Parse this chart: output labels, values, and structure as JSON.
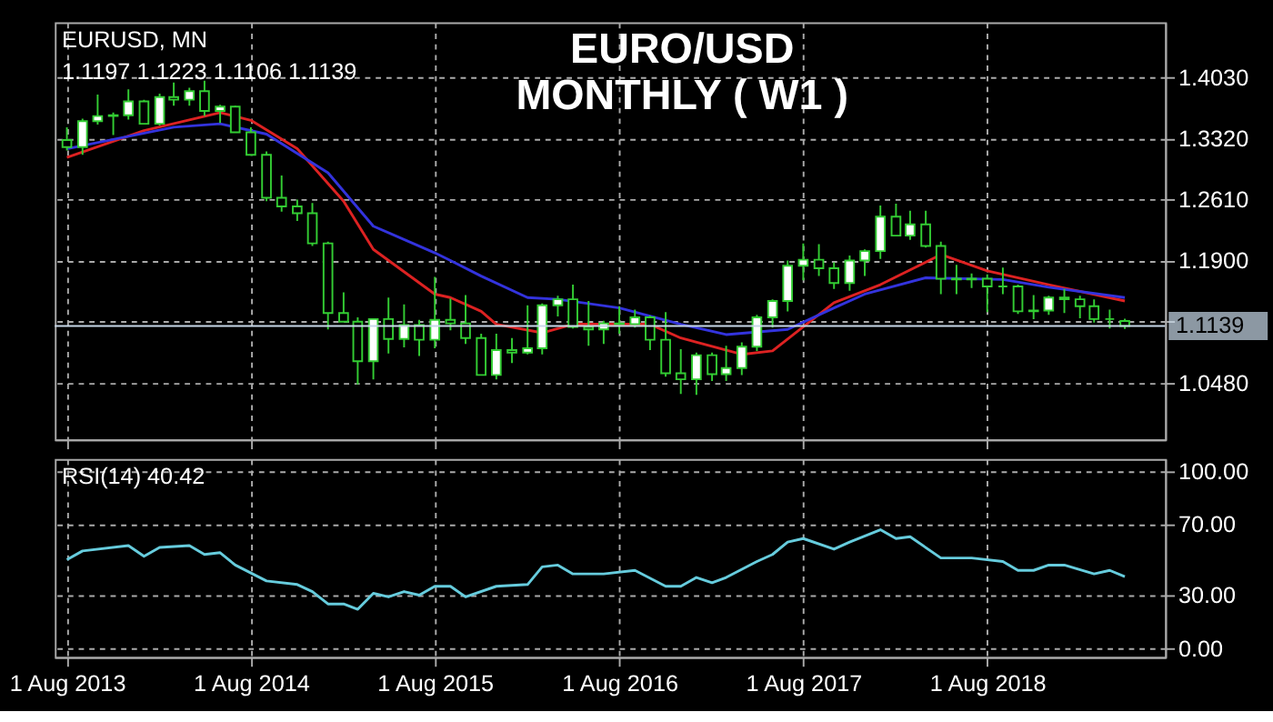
{
  "chart_data": [
    {
      "type": "candlestick",
      "title": "EURO/USD\nMONTHLY ( W1 )",
      "annotations": [
        "EURUSD, MN",
        "1.1197 1.1223 1.1106 1.1139"
      ],
      "color": "#33cc33",
      "grid": true,
      "tick_labels": "y",
      "xlim": [
        "2013-07-08",
        "2019-07-20"
      ],
      "xticks": [
        {
          "value": "2013-08-01",
          "label": null
        },
        {
          "value": "2014-08-01",
          "label": null
        },
        {
          "value": "2015-08-01",
          "label": null
        },
        {
          "value": "2016-08-01",
          "label": null
        },
        {
          "value": "2017-08-01",
          "label": null
        },
        {
          "value": "2018-08-01",
          "label": null
        }
      ],
      "ylim": [
        0.982,
        1.467
      ],
      "yticks": [
        {
          "value": 1.048,
          "label": "1.0480"
        },
        {
          "value": 1.119,
          "label": null
        },
        {
          "value": 1.19,
          "label": "1.1900"
        },
        {
          "value": 1.261,
          "label": "1.2610"
        },
        {
          "value": 1.332,
          "label": "1.3320"
        },
        {
          "value": 1.403,
          "label": "1.4030"
        }
      ],
      "ref_lines": [
        {
          "axis": "y",
          "value": 1.1139,
          "label": "1.1139",
          "color": "#c8d8e8"
        }
      ],
      "x": [
        "2013-08",
        "2013-09",
        "2013-10",
        "2013-11",
        "2013-12",
        "2014-01",
        "2014-02",
        "2014-03",
        "2014-04",
        "2014-05",
        "2014-06",
        "2014-07",
        "2014-08",
        "2014-09",
        "2014-10",
        "2014-11",
        "2014-12",
        "2015-01",
        "2015-02",
        "2015-03",
        "2015-04",
        "2015-05",
        "2015-06",
        "2015-07",
        "2015-08",
        "2015-09",
        "2015-10",
        "2015-11",
        "2015-12",
        "2016-01",
        "2016-02",
        "2016-03",
        "2016-04",
        "2016-05",
        "2016-06",
        "2016-07",
        "2016-08",
        "2016-09",
        "2016-10",
        "2016-11",
        "2016-12",
        "2017-01",
        "2017-02",
        "2017-03",
        "2017-04",
        "2017-05",
        "2017-06",
        "2017-07",
        "2017-08",
        "2017-09",
        "2017-10",
        "2017-11",
        "2017-12",
        "2018-01",
        "2018-02",
        "2018-03",
        "2018-04",
        "2018-05",
        "2018-06",
        "2018-07",
        "2018-08",
        "2018-09",
        "2018-10",
        "2018-11",
        "2018-12",
        "2019-01",
        "2019-02",
        "2019-03",
        "2019-04",
        "2019-05"
      ],
      "ohlc": [
        [
          1.33,
          1.345,
          1.318,
          1.322
        ],
        [
          1.322,
          1.355,
          1.313,
          1.352
        ],
        [
          1.352,
          1.383,
          1.348,
          1.358
        ],
        [
          1.358,
          1.362,
          1.336,
          1.359
        ],
        [
          1.359,
          1.389,
          1.354,
          1.375
        ],
        [
          1.375,
          1.377,
          1.348,
          1.349
        ],
        [
          1.349,
          1.384,
          1.347,
          1.38
        ],
        [
          1.38,
          1.397,
          1.37,
          1.377
        ],
        [
          1.377,
          1.391,
          1.37,
          1.387
        ],
        [
          1.387,
          1.399,
          1.358,
          1.364
        ],
        [
          1.364,
          1.371,
          1.35,
          1.369
        ],
        [
          1.369,
          1.37,
          1.339,
          1.339
        ],
        [
          1.339,
          1.345,
          1.312,
          1.313
        ],
        [
          1.313,
          1.317,
          1.259,
          1.263
        ],
        [
          1.263,
          1.289,
          1.247,
          1.253
        ],
        [
          1.253,
          1.261,
          1.236,
          1.245
        ],
        [
          1.245,
          1.257,
          1.207,
          1.21
        ],
        [
          1.21,
          1.212,
          1.11,
          1.129
        ],
        [
          1.129,
          1.153,
          1.119,
          1.119
        ],
        [
          1.119,
          1.124,
          1.046,
          1.073
        ],
        [
          1.073,
          1.122,
          1.052,
          1.122
        ],
        [
          1.122,
          1.147,
          1.082,
          1.099
        ],
        [
          1.099,
          1.139,
          1.089,
          1.115
        ],
        [
          1.115,
          1.121,
          1.079,
          1.098
        ],
        [
          1.098,
          1.171,
          1.088,
          1.121
        ],
        [
          1.121,
          1.146,
          1.109,
          1.117
        ],
        [
          1.117,
          1.15,
          1.093,
          1.1
        ],
        [
          1.1,
          1.105,
          1.057,
          1.057
        ],
        [
          1.057,
          1.105,
          1.052,
          1.086
        ],
        [
          1.086,
          1.1,
          1.071,
          1.083
        ],
        [
          1.083,
          1.138,
          1.081,
          1.088
        ],
        [
          1.088,
          1.14,
          1.081,
          1.138
        ],
        [
          1.138,
          1.149,
          1.125,
          1.145
        ],
        [
          1.145,
          1.162,
          1.111,
          1.113
        ],
        [
          1.113,
          1.143,
          1.091,
          1.11
        ],
        [
          1.11,
          1.12,
          1.093,
          1.117
        ],
        [
          1.117,
          1.137,
          1.105,
          1.116
        ],
        [
          1.116,
          1.133,
          1.112,
          1.124
        ],
        [
          1.124,
          1.126,
          1.086,
          1.098
        ],
        [
          1.098,
          1.13,
          1.055,
          1.059
        ],
        [
          1.059,
          1.087,
          1.035,
          1.052
        ],
        [
          1.052,
          1.083,
          1.034,
          1.08
        ],
        [
          1.08,
          1.083,
          1.05,
          1.058
        ],
        [
          1.058,
          1.091,
          1.05,
          1.065
        ],
        [
          1.065,
          1.095,
          1.057,
          1.09
        ],
        [
          1.09,
          1.127,
          1.085,
          1.124
        ],
        [
          1.124,
          1.145,
          1.112,
          1.143
        ],
        [
          1.143,
          1.19,
          1.131,
          1.184
        ],
        [
          1.184,
          1.21,
          1.167,
          1.191
        ],
        [
          1.191,
          1.209,
          1.172,
          1.181
        ],
        [
          1.181,
          1.188,
          1.157,
          1.164
        ],
        [
          1.164,
          1.196,
          1.155,
          1.19
        ],
        [
          1.19,
          1.203,
          1.172,
          1.201
        ],
        [
          1.201,
          1.254,
          1.192,
          1.241
        ],
        [
          1.241,
          1.256,
          1.218,
          1.219
        ],
        [
          1.219,
          1.248,
          1.214,
          1.232
        ],
        [
          1.232,
          1.248,
          1.205,
          1.207
        ],
        [
          1.207,
          1.212,
          1.151,
          1.169
        ],
        [
          1.169,
          1.185,
          1.151,
          1.168
        ],
        [
          1.168,
          1.175,
          1.158,
          1.169
        ],
        [
          1.169,
          1.174,
          1.13,
          1.16
        ],
        [
          1.16,
          1.182,
          1.151,
          1.16
        ],
        [
          1.16,
          1.162,
          1.128,
          1.131
        ],
        [
          1.131,
          1.15,
          1.122,
          1.132
        ],
        [
          1.132,
          1.149,
          1.127,
          1.147
        ],
        [
          1.147,
          1.157,
          1.129,
          1.145
        ],
        [
          1.145,
          1.149,
          1.123,
          1.137
        ],
        [
          1.137,
          1.145,
          1.118,
          1.122
        ],
        [
          1.122,
          1.133,
          1.111,
          1.122
        ],
        [
          1.1197,
          1.1223,
          1.1106,
          1.1139
        ]
      ],
      "series": [
        {
          "type": "line",
          "color": "#dd2222",
          "x": [
            "2013-08",
            "2014-01",
            "2014-06",
            "2014-08",
            "2014-11",
            "2015-02",
            "2015-04",
            "2015-08",
            "2015-09",
            "2015-11",
            "2015-12",
            "2016-03",
            "2016-05",
            "2016-10",
            "2016-12",
            "2017-04",
            "2017-06",
            "2017-10",
            "2018-01",
            "2018-05",
            "2018-08",
            "2018-12",
            "2019-05"
          ],
          "values": [
            1.31,
            1.341,
            1.362,
            1.353,
            1.32,
            1.259,
            1.203,
            1.151,
            1.147,
            1.131,
            1.116,
            1.106,
            1.116,
            1.116,
            1.1,
            1.081,
            1.085,
            1.141,
            1.162,
            1.197,
            1.178,
            1.162,
            1.143
          ]
        },
        {
          "type": "line",
          "color": "#3333dd",
          "x": [
            "2013-08",
            "2014-03",
            "2014-06",
            "2014-09",
            "2015-01",
            "2015-04",
            "2015-08",
            "2015-09",
            "2015-11",
            "2016-02",
            "2016-04",
            "2016-08",
            "2016-12",
            "2017-03",
            "2017-07",
            "2017-10",
            "2017-12",
            "2018-04",
            "2018-09",
            "2018-12",
            "2019-05"
          ],
          "values": [
            1.32,
            1.345,
            1.349,
            1.337,
            1.292,
            1.23,
            1.199,
            1.19,
            1.172,
            1.147,
            1.145,
            1.135,
            1.116,
            1.104,
            1.11,
            1.135,
            1.151,
            1.17,
            1.168,
            1.159,
            1.147
          ]
        }
      ]
    },
    {
      "type": "line",
      "annotations": [
        "RSI(14) 40.42"
      ],
      "grid": true,
      "xlim": [
        "2013-07-08",
        "2019-07-20"
      ],
      "xticks": [
        {
          "value": "2013-08-01",
          "label": "1 Aug 2013"
        },
        {
          "value": "2014-08-01",
          "label": "1 Aug 2014"
        },
        {
          "value": "2015-08-01",
          "label": "1 Aug 2015"
        },
        {
          "value": "2016-08-01",
          "label": "1 Aug 2016"
        },
        {
          "value": "2017-08-01",
          "label": "1 Aug 2017"
        },
        {
          "value": "2018-08-01",
          "label": "1 Aug 2018"
        }
      ],
      "ylim": [
        -5,
        107
      ],
      "yticks": [
        {
          "value": 0,
          "label": "0.00"
        },
        {
          "value": 30,
          "label": "30.00"
        },
        {
          "value": 70,
          "label": "70.00"
        },
        {
          "value": 100,
          "label": "100.00"
        }
      ],
      "x": [
        "2013-08",
        "2013-09",
        "2013-12",
        "2014-01",
        "2014-02",
        "2014-04",
        "2014-05",
        "2014-06",
        "2014-07",
        "2014-09",
        "2014-11",
        "2014-12",
        "2015-01",
        "2015-02",
        "2015-03",
        "2015-04",
        "2015-05",
        "2015-06",
        "2015-07",
        "2015-08",
        "2015-09",
        "2015-10",
        "2015-12",
        "2016-02",
        "2016-03",
        "2016-04",
        "2016-05",
        "2016-07",
        "2016-09",
        "2016-11",
        "2016-12",
        "2017-01",
        "2017-02",
        "2017-03",
        "2017-05",
        "2017-06",
        "2017-07",
        "2017-08",
        "2017-10",
        "2017-11",
        "2018-01",
        "2018-02",
        "2018-03",
        "2018-05",
        "2018-07",
        "2018-09",
        "2018-10",
        "2018-11",
        "2018-12",
        "2019-01",
        "2019-03",
        "2019-04",
        "2019-05"
      ],
      "series": [
        {
          "color": "#66ccdd",
          "values": [
            50,
            55,
            58,
            52,
            57,
            58,
            53,
            54,
            47,
            38,
            36,
            32,
            25,
            25,
            22,
            31,
            29,
            32,
            30,
            35,
            35,
            29,
            35,
            36,
            46,
            47,
            42,
            42,
            44,
            35,
            35,
            40,
            37,
            40,
            49,
            53,
            60,
            62,
            56,
            60,
            67,
            62,
            63,
            51,
            51,
            49,
            44,
            44,
            47,
            47,
            42,
            44,
            40.42
          ]
        }
      ]
    }
  ]
}
